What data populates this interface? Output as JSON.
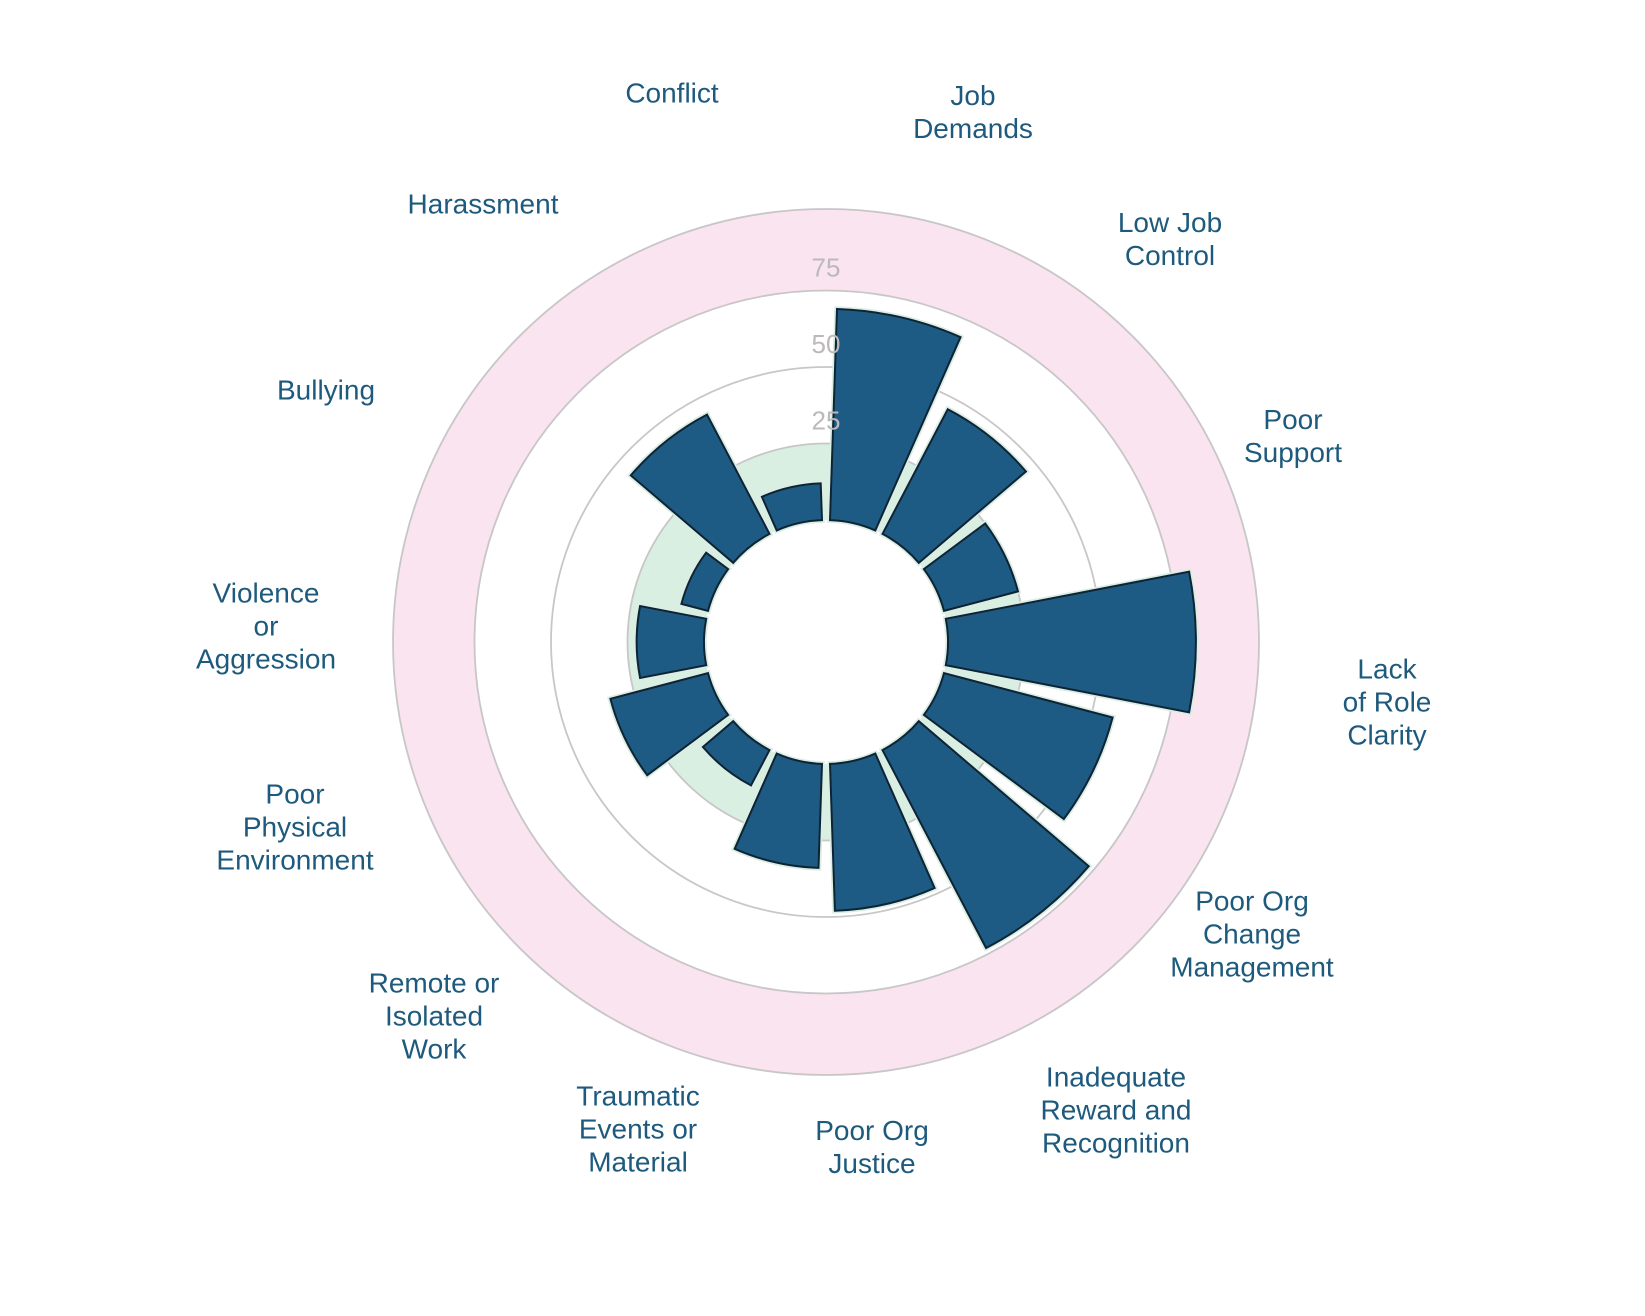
{
  "page": {
    "background": "#ffffff"
  },
  "chart_data": {
    "type": "bar",
    "subtype": "polar-rose",
    "title": "",
    "direction": "clockwise",
    "start_angle_deg": 0,
    "categories": [
      "Job Demands",
      "Low Job Control",
      "Poor Support",
      "Lack of Role Clarity",
      "Poor Org Change Management",
      "Inadequate Reward and Recognition",
      "Poor Org Justice",
      "Traumatic Events or Material",
      "Remote or Isolated Work",
      "Poor Physical Environment",
      "Violence or Aggression",
      "Bullying",
      "Harassment",
      "Conflict"
    ],
    "values": [
      69,
      46,
      25,
      81,
      57,
      73,
      48,
      34,
      13,
      33,
      22,
      9,
      44,
      12
    ],
    "radial_axis": {
      "range": [
        0,
        100
      ],
      "ticks": [
        25,
        50,
        75
      ],
      "tick_labels": [
        "25",
        "50",
        "75"
      ]
    },
    "risk_zones": [
      {
        "from": 0,
        "to": 25,
        "color": "#d9efe2"
      },
      {
        "from": 25,
        "to": 75,
        "color": "#ffffff"
      },
      {
        "from": 75,
        "to": 100,
        "color": "#f9e4ef"
      }
    ]
  },
  "category_label_lines": [
    [
      "Job",
      "Demands"
    ],
    [
      "Low Job",
      "Control"
    ],
    [
      "Poor",
      "Support"
    ],
    [
      "Lack",
      "of Role",
      "Clarity"
    ],
    [
      "Poor Org",
      "Change",
      "Management"
    ],
    [
      "Inadequate",
      "Reward and",
      "Recognition"
    ],
    [
      "Poor Org",
      "Justice"
    ],
    [
      "Traumatic",
      "Events or",
      "Material"
    ],
    [
      "Remote or",
      "Isolated",
      "Work"
    ],
    [
      "Poor",
      "Physical",
      "Environment"
    ],
    [
      "Violence",
      "or",
      "Aggression"
    ],
    [
      "Bullying"
    ],
    [
      "Harassment"
    ],
    [
      "Conflict"
    ]
  ],
  "colors": {
    "bar_fill": "#1e5b84",
    "bar_stroke": "#0e2433",
    "bar_halo": "#daeee6",
    "zone_low": "#d9efe2",
    "zone_high": "#f9e4ef",
    "gridline": "#c8c6c7",
    "tick_text": "#bdb9bb",
    "label_text": "#1d5a7d"
  }
}
